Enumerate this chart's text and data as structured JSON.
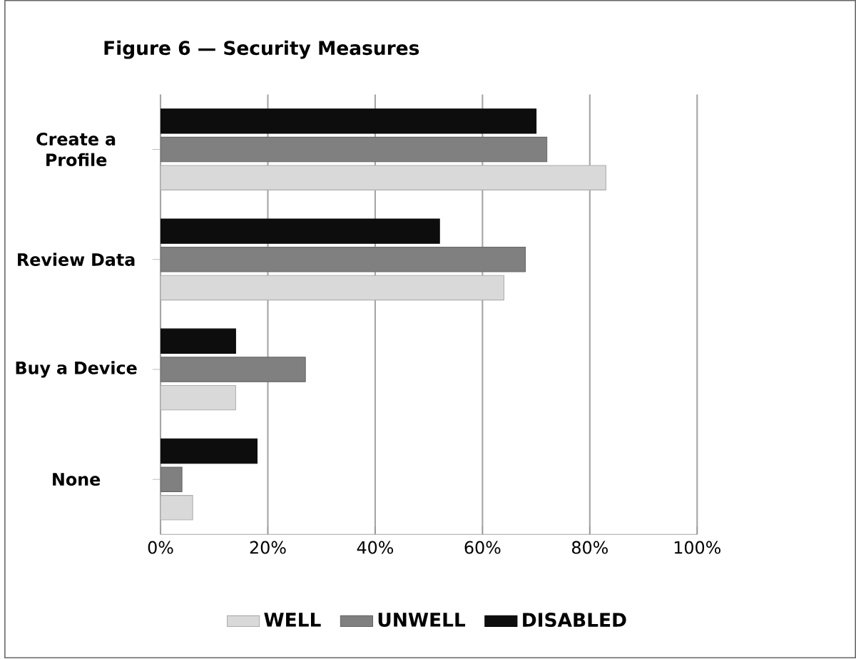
{
  "chart_data": {
    "type": "bar",
    "orientation": "horizontal",
    "title": "Figure 6 — Security Measures",
    "categories": [
      "Create a Profile",
      "Review Data",
      "Buy a Device",
      "None"
    ],
    "series": [
      {
        "name": "WELL",
        "color": "#d9d9d9",
        "values": [
          83,
          64,
          14,
          6
        ]
      },
      {
        "name": "UNWELL",
        "color": "#808080",
        "values": [
          72,
          68,
          27,
          4
        ]
      },
      {
        "name": "DISABLED",
        "color": "#0d0d0d",
        "values": [
          70,
          52,
          14,
          18
        ]
      }
    ],
    "xlim": [
      0,
      100
    ],
    "xticks": [
      {
        "value": 0,
        "label": "0%"
      },
      {
        "value": 20,
        "label": "20%"
      },
      {
        "value": 40,
        "label": "40%"
      },
      {
        "value": 60,
        "label": "60%"
      },
      {
        "value": 80,
        "label": "80%"
      },
      {
        "value": 100,
        "label": "100%"
      }
    ],
    "grid": "x",
    "legend": "bottom"
  }
}
